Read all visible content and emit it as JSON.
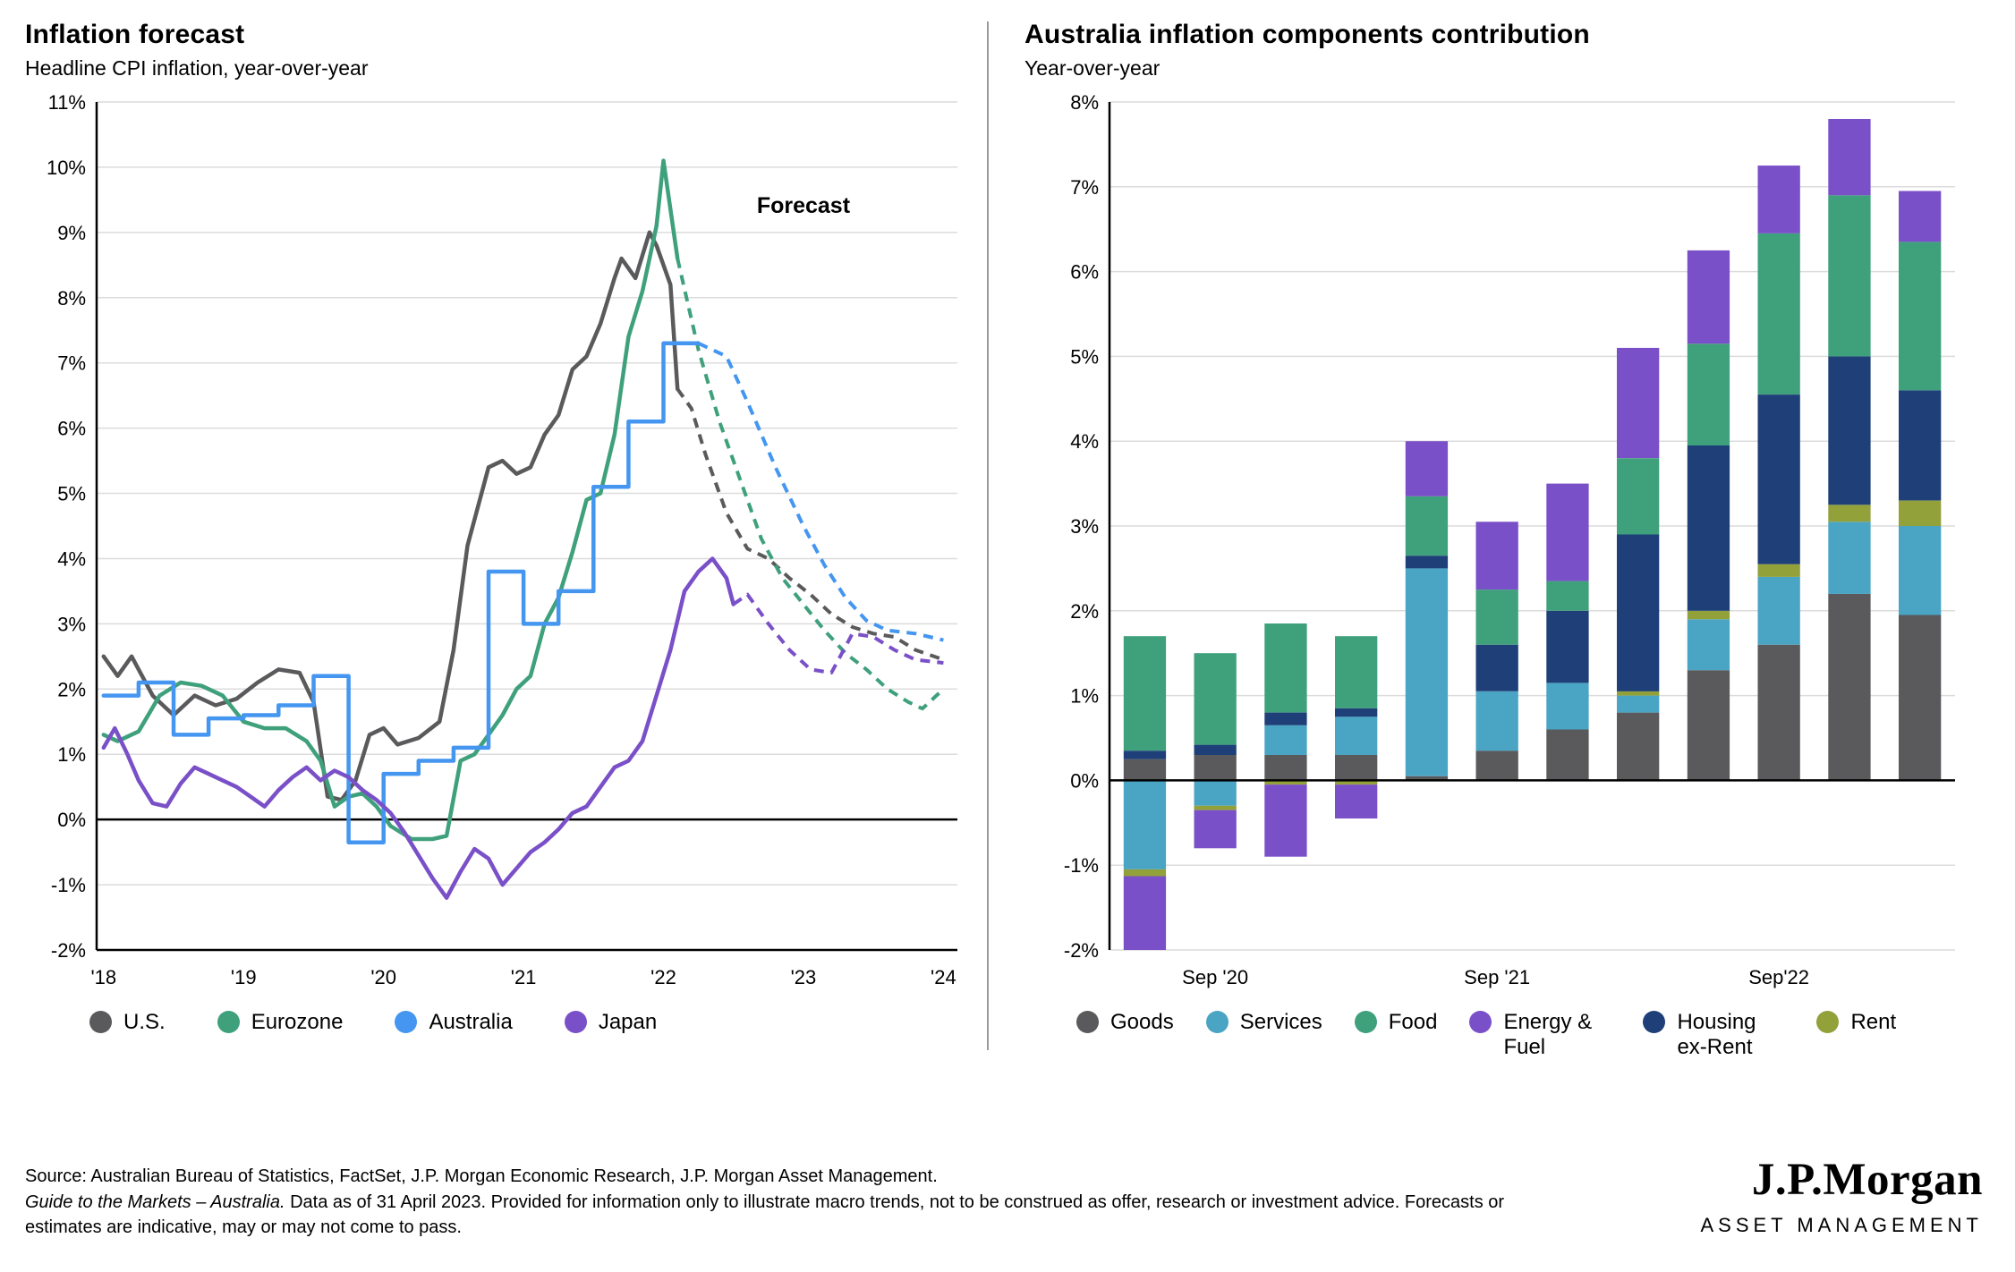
{
  "chart_data": [
    {
      "type": "line",
      "title": "Inflation forecast",
      "subtitle": "Headline CPI inflation, year-over-year",
      "xlabel": "",
      "ylabel": "",
      "xlim": [
        2017.95,
        2024.1
      ],
      "ylim": [
        -2,
        11
      ],
      "y_ticks": [
        -2,
        -1,
        0,
        1,
        2,
        3,
        4,
        5,
        6,
        7,
        8,
        9,
        10,
        11
      ],
      "x_ticks": [
        {
          "v": 2018,
          "label": "'18"
        },
        {
          "v": 2019,
          "label": "'19"
        },
        {
          "v": 2020,
          "label": "'20"
        },
        {
          "v": 2021,
          "label": "'21"
        },
        {
          "v": 2022,
          "label": "'22"
        },
        {
          "v": 2023,
          "label": "'23"
        },
        {
          "v": 2024,
          "label": "'24"
        }
      ],
      "annotation": {
        "text": "Forecast",
        "x": 2023.0,
        "y": 9.3
      },
      "grid": true,
      "legend_position": "bottom",
      "series": [
        {
          "name": "U.S.",
          "color": "#5a5a5c",
          "forecast_start": 2022.1,
          "points": [
            [
              2018.0,
              2.5
            ],
            [
              2018.1,
              2.2
            ],
            [
              2018.2,
              2.5
            ],
            [
              2018.35,
              1.9
            ],
            [
              2018.5,
              1.6
            ],
            [
              2018.65,
              1.9
            ],
            [
              2018.8,
              1.75
            ],
            [
              2018.95,
              1.85
            ],
            [
              2019.1,
              2.1
            ],
            [
              2019.25,
              2.3
            ],
            [
              2019.4,
              2.25
            ],
            [
              2019.5,
              1.8
            ],
            [
              2019.6,
              0.35
            ],
            [
              2019.7,
              0.3
            ],
            [
              2019.8,
              0.6
            ],
            [
              2019.9,
              1.3
            ],
            [
              2020.0,
              1.4
            ],
            [
              2020.1,
              1.15
            ],
            [
              2020.25,
              1.25
            ],
            [
              2020.4,
              1.5
            ],
            [
              2020.5,
              2.6
            ],
            [
              2020.6,
              4.2
            ],
            [
              2020.7,
              5.0
            ],
            [
              2020.75,
              5.4
            ],
            [
              2020.85,
              5.5
            ],
            [
              2020.95,
              5.3
            ],
            [
              2021.05,
              5.4
            ],
            [
              2021.15,
              5.9
            ],
            [
              2021.25,
              6.2
            ],
            [
              2021.35,
              6.9
            ],
            [
              2021.45,
              7.1
            ],
            [
              2021.55,
              7.6
            ],
            [
              2021.65,
              8.3
            ],
            [
              2021.7,
              8.6
            ],
            [
              2021.8,
              8.3
            ],
            [
              2021.9,
              9.0
            ],
            [
              2021.95,
              8.8
            ],
            [
              2022.05,
              8.2
            ],
            [
              2022.1,
              6.6
            ],
            [
              2022.2,
              6.3
            ],
            [
              2022.3,
              5.6
            ],
            [
              2022.45,
              4.7
            ],
            [
              2022.6,
              4.15
            ],
            [
              2022.75,
              4.0
            ],
            [
              2022.9,
              3.7
            ],
            [
              2023.05,
              3.45
            ],
            [
              2023.2,
              3.15
            ],
            [
              2023.35,
              2.95
            ],
            [
              2023.5,
              2.85
            ],
            [
              2023.65,
              2.8
            ],
            [
              2023.8,
              2.6
            ],
            [
              2024.0,
              2.45
            ]
          ]
        },
        {
          "name": "Eurozone",
          "color": "#3fa07c",
          "forecast_start": 2022.1,
          "points": [
            [
              2018.0,
              1.3
            ],
            [
              2018.1,
              1.2
            ],
            [
              2018.25,
              1.35
            ],
            [
              2018.4,
              1.9
            ],
            [
              2018.55,
              2.1
            ],
            [
              2018.7,
              2.05
            ],
            [
              2018.85,
              1.9
            ],
            [
              2019.0,
              1.5
            ],
            [
              2019.15,
              1.4
            ],
            [
              2019.3,
              1.4
            ],
            [
              2019.45,
              1.2
            ],
            [
              2019.55,
              0.9
            ],
            [
              2019.65,
              0.2
            ],
            [
              2019.75,
              0.35
            ],
            [
              2019.85,
              0.4
            ],
            [
              2019.95,
              0.2
            ],
            [
              2020.05,
              -0.1
            ],
            [
              2020.2,
              -0.3
            ],
            [
              2020.35,
              -0.3
            ],
            [
              2020.45,
              -0.25
            ],
            [
              2020.55,
              0.9
            ],
            [
              2020.65,
              1.0
            ],
            [
              2020.75,
              1.3
            ],
            [
              2020.85,
              1.6
            ],
            [
              2020.95,
              2.0
            ],
            [
              2021.05,
              2.2
            ],
            [
              2021.15,
              3.0
            ],
            [
              2021.25,
              3.4
            ],
            [
              2021.35,
              4.1
            ],
            [
              2021.45,
              4.9
            ],
            [
              2021.55,
              5.0
            ],
            [
              2021.65,
              5.9
            ],
            [
              2021.75,
              7.4
            ],
            [
              2021.85,
              8.1
            ],
            [
              2021.9,
              8.6
            ],
            [
              2021.95,
              9.1
            ],
            [
              2022.0,
              10.1
            ],
            [
              2022.1,
              8.6
            ],
            [
              2022.25,
              7.2
            ],
            [
              2022.4,
              6.1
            ],
            [
              2022.55,
              5.2
            ],
            [
              2022.7,
              4.3
            ],
            [
              2022.85,
              3.7
            ],
            [
              2023.0,
              3.3
            ],
            [
              2023.15,
              2.9
            ],
            [
              2023.3,
              2.55
            ],
            [
              2023.45,
              2.3
            ],
            [
              2023.6,
              2.0
            ],
            [
              2023.75,
              1.8
            ],
            [
              2023.85,
              1.7
            ],
            [
              2024.0,
              2.0
            ]
          ]
        },
        {
          "name": "Australia",
          "color": "#4496f0",
          "step": true,
          "forecast_start": 2022.3,
          "points": [
            [
              2018.0,
              1.9
            ],
            [
              2018.25,
              2.1
            ],
            [
              2018.5,
              1.3
            ],
            [
              2018.75,
              1.55
            ],
            [
              2019.0,
              1.6
            ],
            [
              2019.25,
              1.75
            ],
            [
              2019.5,
              2.2
            ],
            [
              2019.75,
              -0.35
            ],
            [
              2020.0,
              0.7
            ],
            [
              2020.25,
              0.9
            ],
            [
              2020.5,
              1.1
            ],
            [
              2020.75,
              3.8
            ],
            [
              2021.0,
              3.0
            ],
            [
              2021.25,
              3.5
            ],
            [
              2021.5,
              5.1
            ],
            [
              2021.75,
              6.1
            ],
            [
              2022.0,
              7.3
            ],
            [
              2022.25,
              7.3
            ],
            [
              2022.45,
              7.1
            ],
            [
              2022.6,
              6.4
            ],
            [
              2022.8,
              5.4
            ],
            [
              2023.0,
              4.5
            ],
            [
              2023.15,
              3.9
            ],
            [
              2023.3,
              3.4
            ],
            [
              2023.45,
              3.05
            ],
            [
              2023.6,
              2.9
            ],
            [
              2023.8,
              2.85
            ],
            [
              2024.0,
              2.75
            ]
          ]
        },
        {
          "name": "Japan",
          "color": "#7a50c8",
          "forecast_start": 2022.5,
          "points": [
            [
              2018.0,
              1.1
            ],
            [
              2018.08,
              1.4
            ],
            [
              2018.17,
              1.0
            ],
            [
              2018.25,
              0.6
            ],
            [
              2018.35,
              0.25
            ],
            [
              2018.45,
              0.2
            ],
            [
              2018.55,
              0.55
            ],
            [
              2018.65,
              0.8
            ],
            [
              2018.75,
              0.7
            ],
            [
              2018.85,
              0.6
            ],
            [
              2018.95,
              0.5
            ],
            [
              2019.05,
              0.35
            ],
            [
              2019.15,
              0.2
            ],
            [
              2019.25,
              0.45
            ],
            [
              2019.35,
              0.65
            ],
            [
              2019.45,
              0.8
            ],
            [
              2019.55,
              0.6
            ],
            [
              2019.65,
              0.75
            ],
            [
              2019.75,
              0.65
            ],
            [
              2019.85,
              0.45
            ],
            [
              2019.95,
              0.3
            ],
            [
              2020.05,
              0.1
            ],
            [
              2020.15,
              -0.2
            ],
            [
              2020.25,
              -0.55
            ],
            [
              2020.35,
              -0.9
            ],
            [
              2020.45,
              -1.2
            ],
            [
              2020.55,
              -0.8
            ],
            [
              2020.65,
              -0.45
            ],
            [
              2020.75,
              -0.6
            ],
            [
              2020.85,
              -1.0
            ],
            [
              2020.95,
              -0.75
            ],
            [
              2021.05,
              -0.5
            ],
            [
              2021.15,
              -0.35
            ],
            [
              2021.25,
              -0.15
            ],
            [
              2021.35,
              0.1
            ],
            [
              2021.45,
              0.2
            ],
            [
              2021.55,
              0.5
            ],
            [
              2021.65,
              0.8
            ],
            [
              2021.75,
              0.9
            ],
            [
              2021.85,
              1.2
            ],
            [
              2021.95,
              1.9
            ],
            [
              2022.05,
              2.6
            ],
            [
              2022.15,
              3.5
            ],
            [
              2022.25,
              3.8
            ],
            [
              2022.35,
              4.0
            ],
            [
              2022.45,
              3.7
            ],
            [
              2022.5,
              3.3
            ],
            [
              2022.6,
              3.45
            ],
            [
              2022.75,
              3.0
            ],
            [
              2022.9,
              2.6
            ],
            [
              2023.05,
              2.3
            ],
            [
              2023.2,
              2.25
            ],
            [
              2023.35,
              2.85
            ],
            [
              2023.5,
              2.8
            ],
            [
              2023.65,
              2.6
            ],
            [
              2023.8,
              2.45
            ],
            [
              2024.0,
              2.4
            ]
          ]
        }
      ]
    },
    {
      "type": "stacked_bar",
      "title": "Australia inflation components contribution",
      "subtitle": "Year-over-year",
      "xlabel": "",
      "ylabel": "",
      "ylim": [
        -2,
        8
      ],
      "y_ticks": [
        -2,
        -1,
        0,
        1,
        2,
        3,
        4,
        5,
        6,
        7,
        8
      ],
      "x_ticks": [
        {
          "label": "Sep '20",
          "bar_index": 1
        },
        {
          "label": "Sep '21",
          "bar_index": 5
        },
        {
          "label": "Sep'22",
          "bar_index": 9
        }
      ],
      "grid": true,
      "legend_position": "bottom",
      "stack_order": [
        "goods",
        "services",
        "rent",
        "housing",
        "food",
        "energy"
      ],
      "legend_order": [
        "goods",
        "services",
        "food",
        "energy",
        "housing",
        "rent"
      ],
      "components": {
        "goods": {
          "label": "Goods",
          "color": "#5a5a5c",
          "values": [
            0.25,
            0.3,
            0.3,
            0.3,
            0.05,
            0.35,
            0.6,
            0.8,
            1.3,
            1.6,
            2.2,
            1.95
          ]
        },
        "services": {
          "label": "Services",
          "color": "#4aa4c4",
          "values": [
            -1.05,
            -0.3,
            0.35,
            0.45,
            2.45,
            0.7,
            0.55,
            0.2,
            0.6,
            0.8,
            0.85,
            1.05
          ]
        },
        "food": {
          "label": "Food",
          "color": "#3fa07c",
          "values": [
            1.35,
            1.08,
            1.05,
            0.85,
            0.7,
            0.65,
            0.35,
            0.9,
            1.2,
            1.9,
            1.9,
            1.75
          ]
        },
        "energy": {
          "label": "Energy & Fuel",
          "color": "#7a50c8",
          "values": [
            -0.87,
            -0.45,
            -0.85,
            -0.4,
            0.65,
            0.8,
            1.15,
            1.3,
            1.1,
            0.8,
            0.9,
            0.6
          ]
        },
        "housing": {
          "label": "Housing ex-Rent",
          "color": "#1e3f78",
          "values": [
            0.1,
            0.12,
            0.15,
            0.1,
            0.15,
            0.55,
            0.85,
            1.85,
            1.95,
            2.0,
            1.75,
            1.3
          ]
        },
        "rent": {
          "label": "Rent",
          "color": "#93a13a",
          "values": [
            -0.08,
            -0.05,
            -0.05,
            -0.05,
            0.0,
            0.0,
            0.0,
            0.05,
            0.1,
            0.15,
            0.2,
            0.3
          ]
        }
      }
    }
  ],
  "footer": {
    "source": "Source: Australian Bureau of Statistics, FactSet, J.P. Morgan Economic Research, J.P. Morgan Asset Management.",
    "disclaimer_italic": "Guide to the Markets – Australia.",
    "disclaimer_rest": " Data as of 31 April 2023. Provided for information only to illustrate macro trends, not to be construed as offer, research or investment advice. Forecasts or estimates are indicative, may or may not come to pass."
  },
  "logo": {
    "wordmark": "J.P.Morgan",
    "subtitle": "ASSET MANAGEMENT"
  }
}
